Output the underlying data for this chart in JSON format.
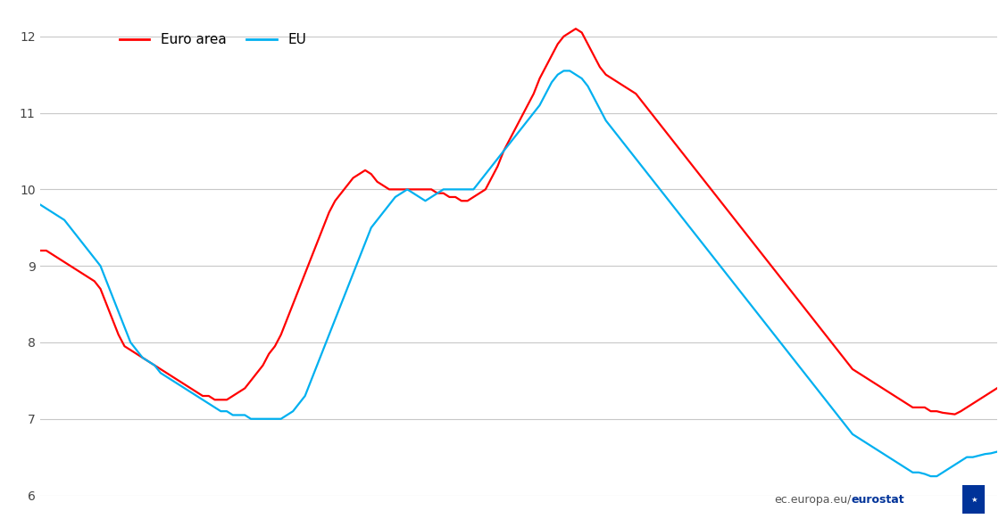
{
  "background_color": "#ffffff",
  "grid_color": "#c8c8c8",
  "ylim": [
    6,
    12.2
  ],
  "yticks": [
    6,
    7,
    8,
    9,
    10,
    11,
    12
  ],
  "euro_area_color": "#ff0000",
  "eu_color": "#00b0f0",
  "legend_labels": [
    "Euro area",
    "EU"
  ],
  "euro_area": [
    9.2,
    9.2,
    9.15,
    9.1,
    9.05,
    9.0,
    8.95,
    8.9,
    8.85,
    8.8,
    8.7,
    8.5,
    8.3,
    8.1,
    7.95,
    7.9,
    7.85,
    7.8,
    7.75,
    7.7,
    7.65,
    7.6,
    7.55,
    7.5,
    7.45,
    7.4,
    7.35,
    7.3,
    7.3,
    7.25,
    7.25,
    7.25,
    7.3,
    7.35,
    7.4,
    7.5,
    7.6,
    7.7,
    7.85,
    7.95,
    8.1,
    8.3,
    8.5,
    8.7,
    8.9,
    9.1,
    9.3,
    9.5,
    9.7,
    9.85,
    9.95,
    10.05,
    10.15,
    10.2,
    10.25,
    10.2,
    10.1,
    10.05,
    10.0,
    10.0,
    10.0,
    10.0,
    10.0,
    10.0,
    10.0,
    10.0,
    9.95,
    9.95,
    9.9,
    9.9,
    9.85,
    9.85,
    9.9,
    9.95,
    10.0,
    10.15,
    10.3,
    10.5,
    10.65,
    10.8,
    10.95,
    11.1,
    11.25,
    11.45,
    11.6,
    11.75,
    11.9,
    12.0,
    12.05,
    12.1,
    12.05,
    11.9,
    11.75,
    11.6,
    11.5,
    11.45,
    11.4,
    11.35,
    11.3,
    11.25,
    11.15,
    11.05,
    10.95,
    10.85,
    10.75,
    10.65,
    10.55,
    10.45,
    10.35,
    10.25,
    10.15,
    10.05,
    9.95,
    9.85,
    9.75,
    9.65,
    9.55,
    9.45,
    9.35,
    9.25,
    9.15,
    9.05,
    8.95,
    8.85,
    8.75,
    8.65,
    8.55,
    8.45,
    8.35,
    8.25,
    8.15,
    8.05,
    7.95,
    7.85,
    7.75,
    7.65,
    7.6,
    7.55,
    7.5,
    7.45,
    7.4,
    7.35,
    7.3,
    7.25,
    7.2,
    7.15,
    7.15,
    7.15,
    7.1,
    7.1,
    7.08,
    7.07,
    7.06,
    7.1,
    7.15,
    7.2,
    7.25,
    7.3,
    7.35,
    7.4
  ],
  "eu": [
    9.8,
    9.75,
    9.7,
    9.65,
    9.6,
    9.5,
    9.4,
    9.3,
    9.2,
    9.1,
    9.0,
    8.8,
    8.6,
    8.4,
    8.2,
    8.0,
    7.9,
    7.8,
    7.75,
    7.7,
    7.6,
    7.55,
    7.5,
    7.45,
    7.4,
    7.35,
    7.3,
    7.25,
    7.2,
    7.15,
    7.1,
    7.1,
    7.05,
    7.05,
    7.05,
    7.0,
    7.0,
    7.0,
    7.0,
    7.0,
    7.0,
    7.05,
    7.1,
    7.2,
    7.3,
    7.5,
    7.7,
    7.9,
    8.1,
    8.3,
    8.5,
    8.7,
    8.9,
    9.1,
    9.3,
    9.5,
    9.6,
    9.7,
    9.8,
    9.9,
    9.95,
    10.0,
    9.95,
    9.9,
    9.85,
    9.9,
    9.95,
    10.0,
    10.0,
    10.0,
    10.0,
    10.0,
    10.0,
    10.1,
    10.2,
    10.3,
    10.4,
    10.5,
    10.6,
    10.7,
    10.8,
    10.9,
    11.0,
    11.1,
    11.25,
    11.4,
    11.5,
    11.55,
    11.55,
    11.5,
    11.45,
    11.35,
    11.2,
    11.05,
    10.9,
    10.8,
    10.7,
    10.6,
    10.5,
    10.4,
    10.3,
    10.2,
    10.1,
    10.0,
    9.9,
    9.8,
    9.7,
    9.6,
    9.5,
    9.4,
    9.3,
    9.2,
    9.1,
    9.0,
    8.9,
    8.8,
    8.7,
    8.6,
    8.5,
    8.4,
    8.3,
    8.2,
    8.1,
    8.0,
    7.9,
    7.8,
    7.7,
    7.6,
    7.5,
    7.4,
    7.3,
    7.2,
    7.1,
    7.0,
    6.9,
    6.8,
    6.75,
    6.7,
    6.65,
    6.6,
    6.55,
    6.5,
    6.45,
    6.4,
    6.35,
    6.3,
    6.3,
    6.28,
    6.25,
    6.25,
    6.3,
    6.35,
    6.4,
    6.45,
    6.5,
    6.5,
    6.52,
    6.54,
    6.55,
    6.57
  ]
}
